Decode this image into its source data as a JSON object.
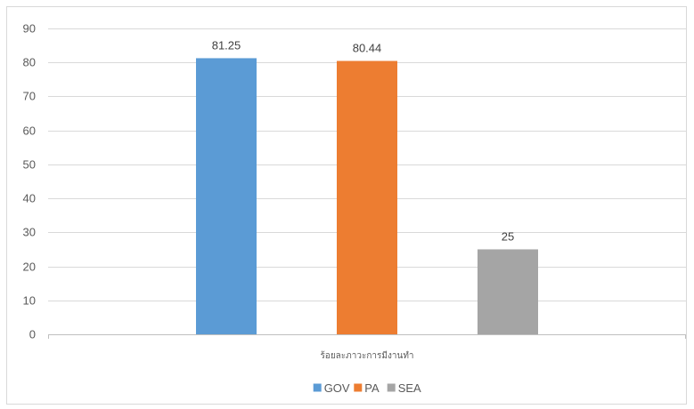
{
  "chart_data": {
    "type": "bar",
    "categories": [
      "ร้อยละภาวะการมีงานทำ"
    ],
    "series": [
      {
        "name": "GOV",
        "values": [
          81.25
        ],
        "color": "#5b9bd5"
      },
      {
        "name": "PA",
        "values": [
          80.44
        ],
        "color": "#ed7d31"
      },
      {
        "name": "SEA",
        "values": [
          25
        ],
        "color": "#a5a5a5"
      }
    ],
    "ylim": [
      0,
      90
    ],
    "yticks": [
      0,
      10,
      20,
      30,
      40,
      50,
      60,
      70,
      80,
      90
    ],
    "grid": true,
    "legend_position": "bottom",
    "data_labels": true,
    "colors": {
      "grid": "#d9d9d9",
      "axis": "#bfbfbf"
    }
  }
}
